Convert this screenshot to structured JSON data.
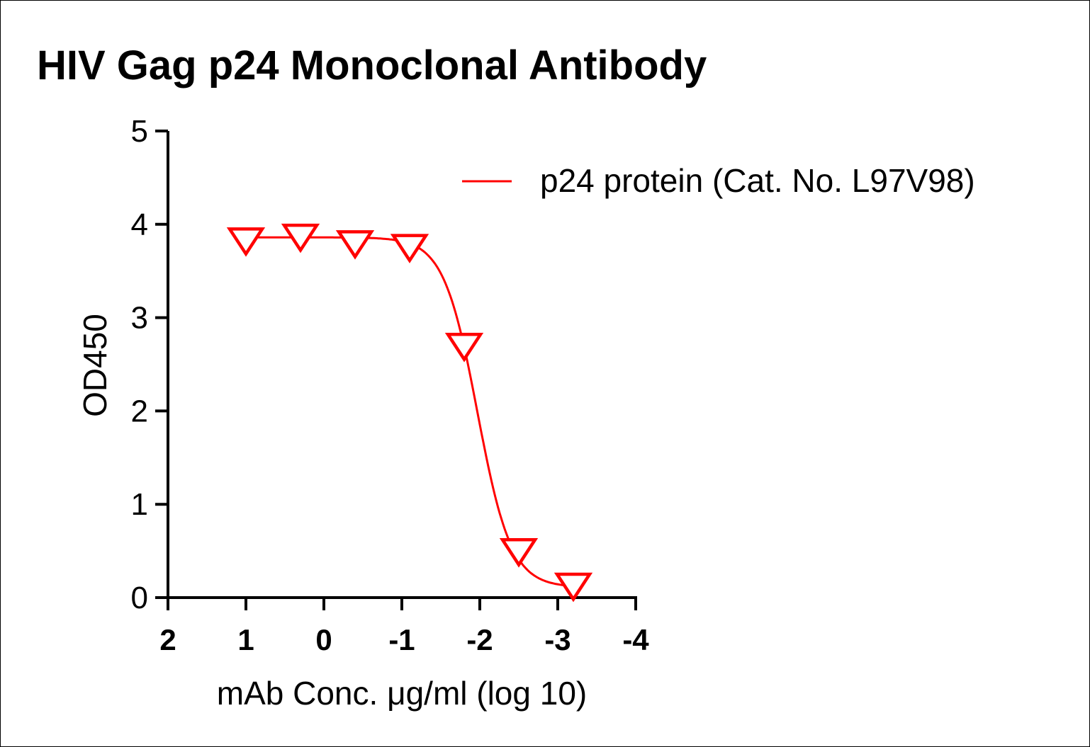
{
  "chart_data": {
    "type": "scatter",
    "title": "HIV Gag p24 Monoclonal Antibody",
    "xlabel": "mAb Conc. μg/ml (log 10)",
    "ylabel": "OD450",
    "xlim": [
      2,
      -4
    ],
    "ylim": [
      0,
      5
    ],
    "x_ticks": [
      "2",
      "1",
      "0",
      "-1",
      "-2",
      "-3",
      "-4"
    ],
    "y_ticks": [
      "0",
      "1",
      "2",
      "3",
      "4",
      "5"
    ],
    "legend_position": "top-right",
    "series": [
      {
        "name": "p24 protein (Cat. No. L97V98)",
        "color": "#ff0000",
        "marker": "triangle-down-open",
        "x": [
          1.0,
          0.3,
          -0.4,
          -1.1,
          -1.8,
          -2.5,
          -3.2
        ],
        "y": [
          3.85,
          3.89,
          3.82,
          3.78,
          2.72,
          0.52,
          0.15
        ],
        "fit": {
          "type": "4PL",
          "top": 3.86,
          "bottom": 0.11,
          "log_ec50": -1.97,
          "hill": 2.0
        }
      }
    ]
  }
}
